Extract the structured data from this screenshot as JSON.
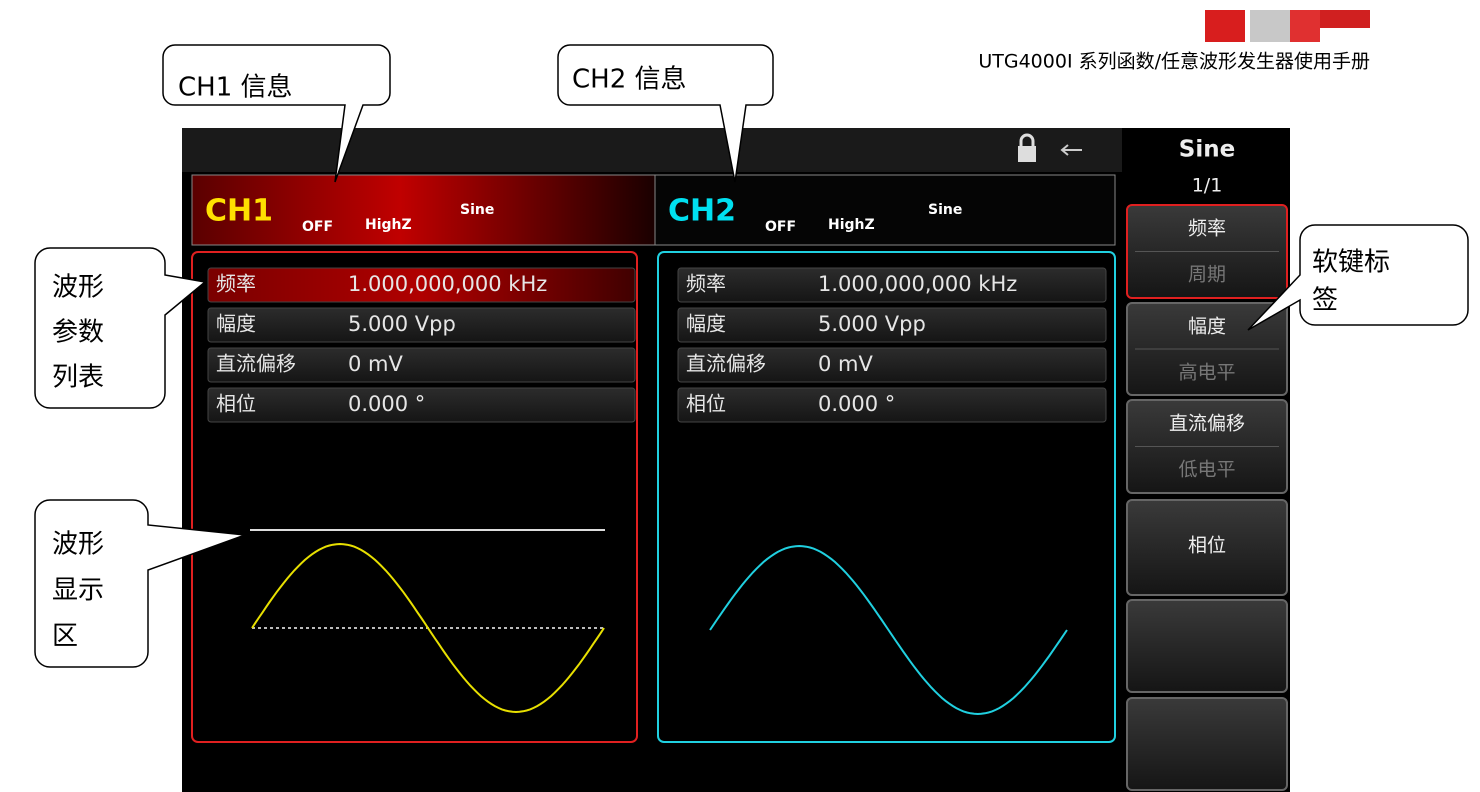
{
  "header": {
    "title": "UTG4000I 系列函数/任意波形发生器使用手册"
  },
  "callouts": {
    "ch1": "CH1 信息",
    "ch2": "CH2 信息",
    "param_list": [
      "波形",
      "参数",
      "列表"
    ],
    "wave_area": [
      "波形",
      "显示",
      "区"
    ],
    "softkey_label": [
      "软键标",
      "签"
    ]
  },
  "screen": {
    "ch1": {
      "label": "CH1",
      "output": "OFF",
      "load": "HighZ",
      "wave": "Sine"
    },
    "ch2": {
      "label": "CH2",
      "output": "OFF",
      "load": "HighZ",
      "wave": "Sine"
    },
    "params": [
      {
        "name": "频率",
        "ch1": "1.000,000,000 kHz",
        "ch2": "1.000,000,000 kHz"
      },
      {
        "name": "幅度",
        "ch1": "5.000 Vpp",
        "ch2": "5.000 Vpp"
      },
      {
        "name": "直流偏移",
        "ch1": "0 mV",
        "ch2": "0 mV"
      },
      {
        "name": "相位",
        "ch1": "0.000 °",
        "ch2": "0.000 °"
      }
    ],
    "softkeys": {
      "title": "Sine",
      "page": "1/1",
      "keys": [
        [
          "频率",
          "周期"
        ],
        [
          "幅度",
          "高电平"
        ],
        [
          "直流偏移",
          "低电平"
        ],
        [
          "相位"
        ],
        [],
        []
      ]
    }
  }
}
